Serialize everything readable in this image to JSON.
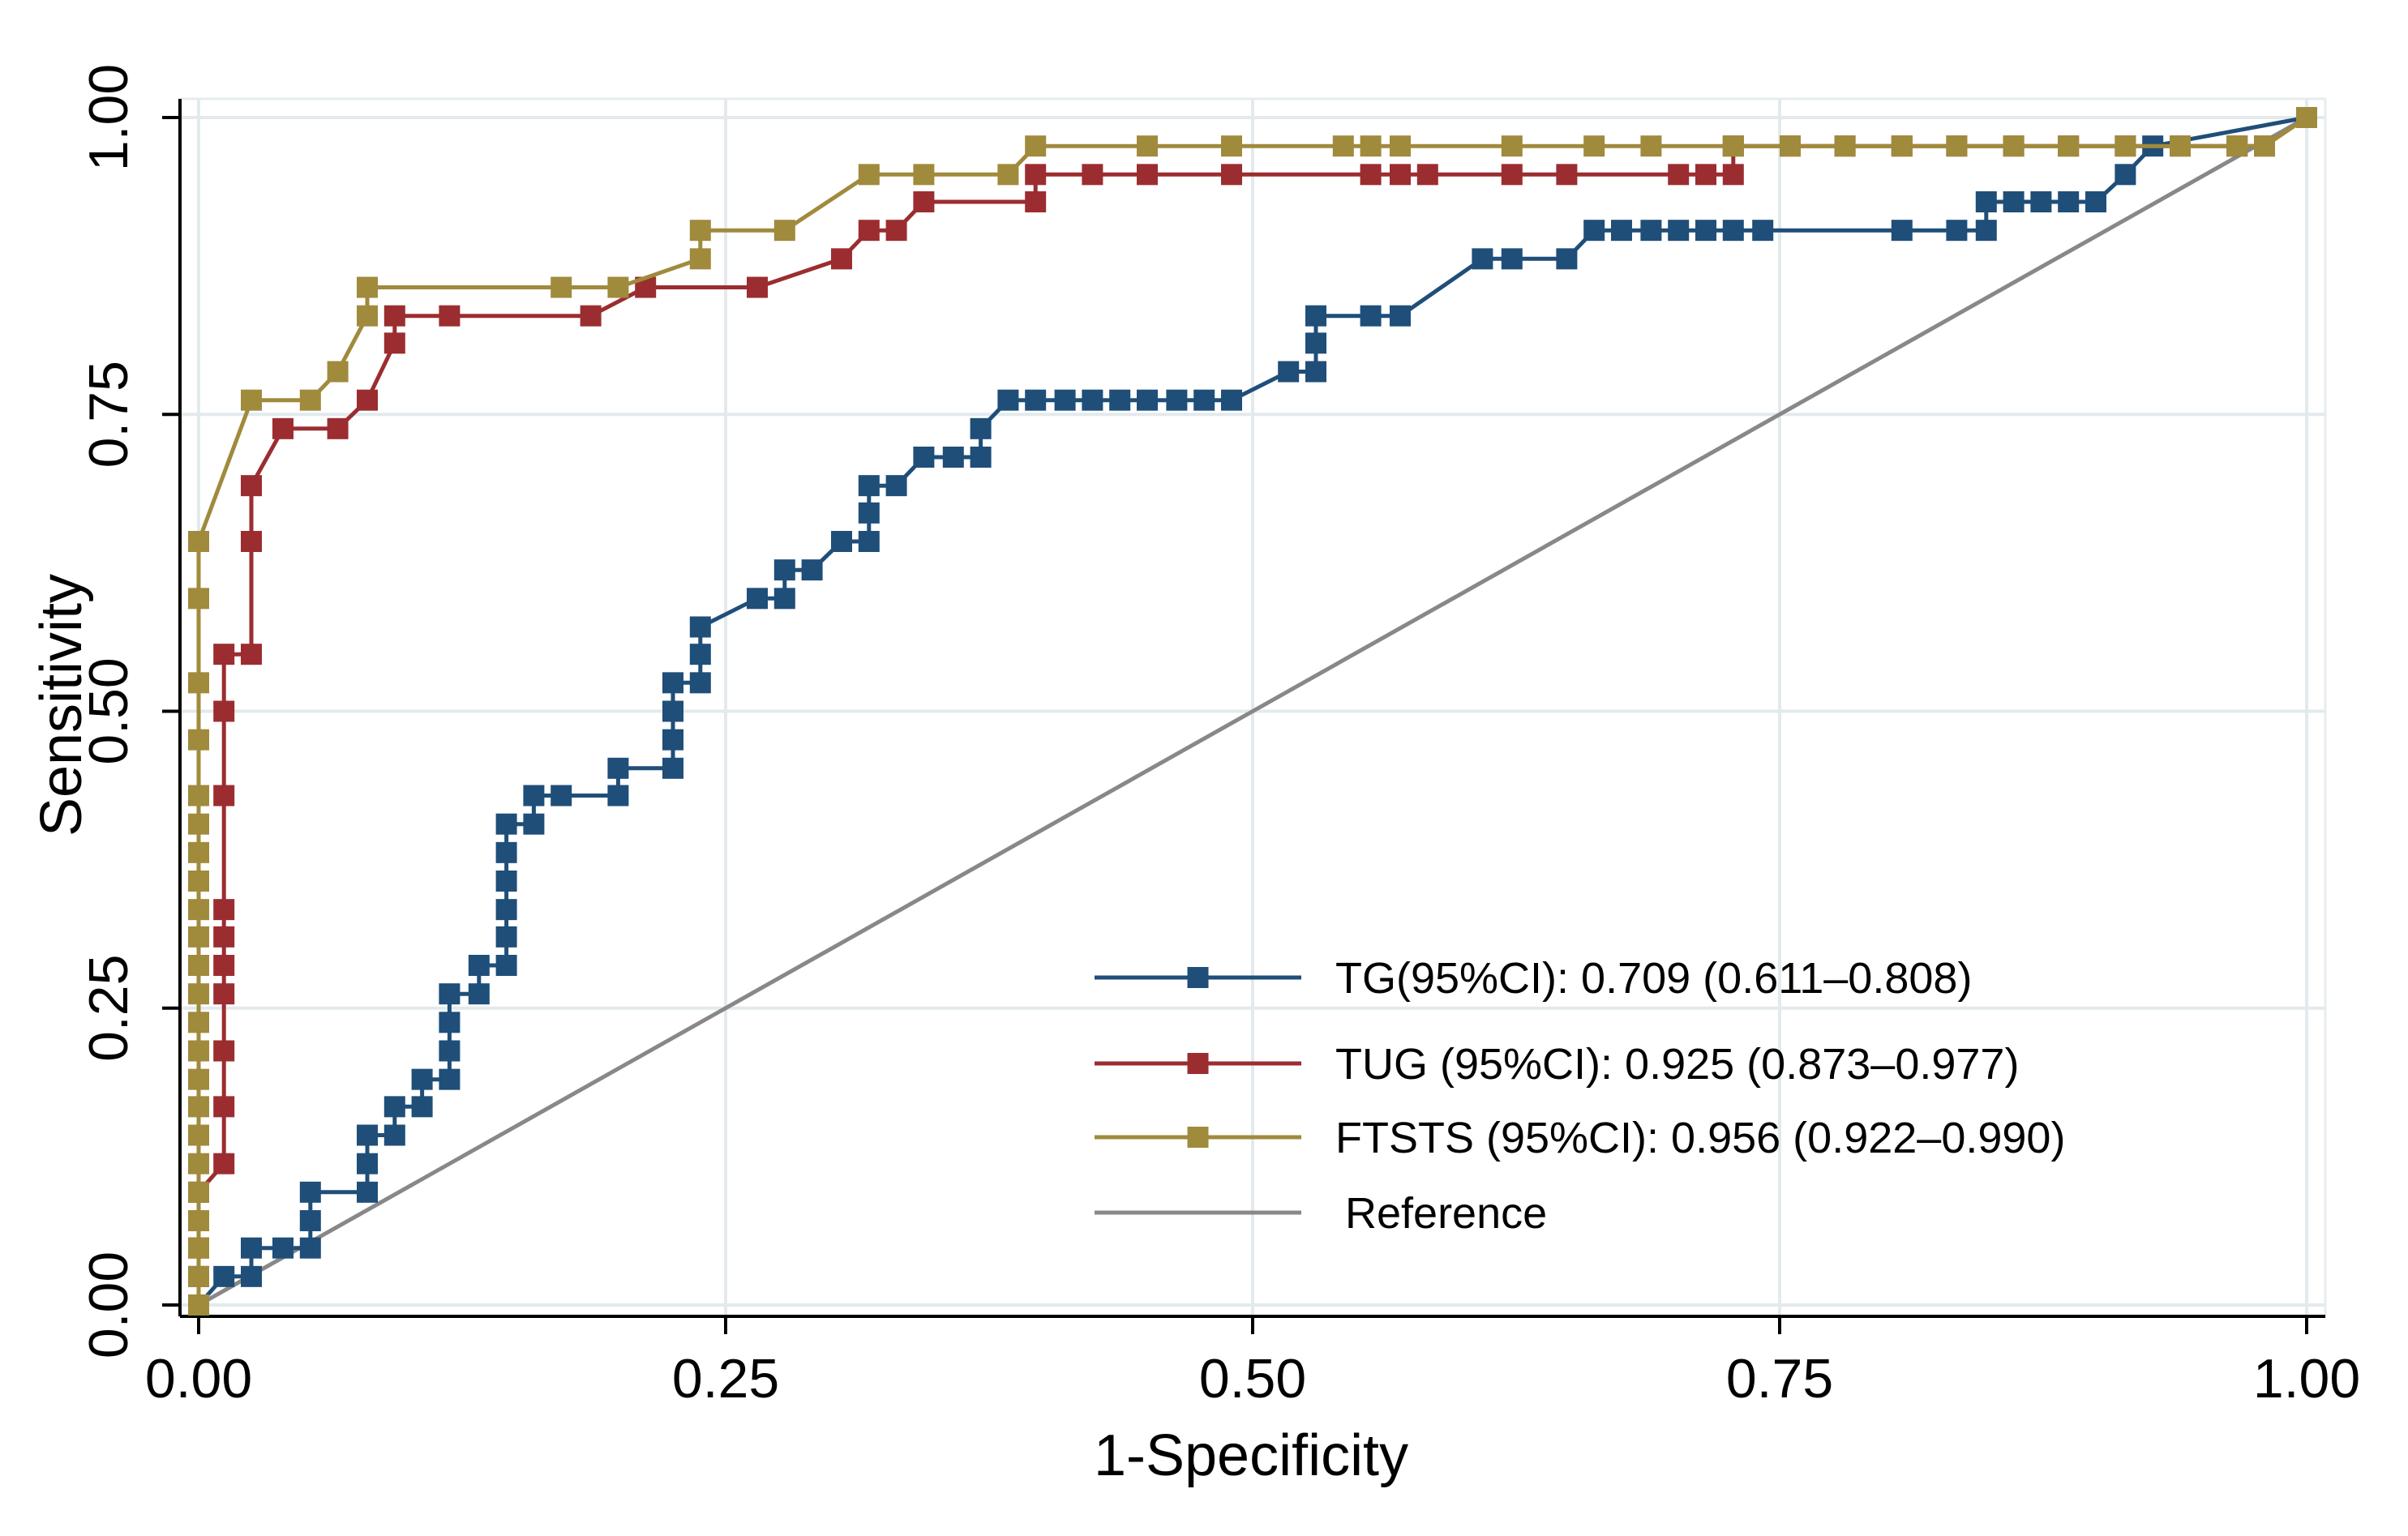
{
  "chart_data": {
    "type": "line",
    "title": "",
    "xlabel": "1-Specificity",
    "ylabel": "Sensitivity",
    "xlim": [
      0,
      1
    ],
    "ylim": [
      0,
      1
    ],
    "xticks": [
      0,
      0.25,
      0.5,
      0.75,
      1
    ],
    "yticks": [
      0,
      0.25,
      0.5,
      0.75,
      1
    ],
    "xtick_labels": [
      "0.00",
      "0.25",
      "0.50",
      "0.75",
      "1.00"
    ],
    "ytick_labels": [
      "0.00",
      "0.25",
      "0.50",
      "0.75",
      "1.00"
    ],
    "grid": true,
    "legend_position": "bottom-right",
    "series": [
      {
        "name": "TG(95%CI): 0.709 (0.611–0.808)",
        "color": "#1f4e79",
        "marker": "square",
        "points": [
          [
            0,
            0
          ],
          [
            0.012,
            0.024
          ],
          [
            0.025,
            0.024
          ],
          [
            0.025,
            0.048
          ],
          [
            0.04,
            0.048
          ],
          [
            0.053,
            0.048
          ],
          [
            0.053,
            0.071
          ],
          [
            0.053,
            0.095
          ],
          [
            0.08,
            0.095
          ],
          [
            0.08,
            0.119
          ],
          [
            0.08,
            0.143
          ],
          [
            0.093,
            0.143
          ],
          [
            0.093,
            0.167
          ],
          [
            0.106,
            0.167
          ],
          [
            0.106,
            0.19
          ],
          [
            0.119,
            0.19
          ],
          [
            0.119,
            0.214
          ],
          [
            0.119,
            0.238
          ],
          [
            0.119,
            0.262
          ],
          [
            0.133,
            0.262
          ],
          [
            0.133,
            0.286
          ],
          [
            0.146,
            0.286
          ],
          [
            0.146,
            0.31
          ],
          [
            0.146,
            0.333
          ],
          [
            0.146,
            0.357
          ],
          [
            0.146,
            0.381
          ],
          [
            0.146,
            0.405
          ],
          [
            0.159,
            0.405
          ],
          [
            0.159,
            0.429
          ],
          [
            0.172,
            0.429
          ],
          [
            0.199,
            0.429
          ],
          [
            0.199,
            0.452
          ],
          [
            0.225,
            0.452
          ],
          [
            0.225,
            0.476
          ],
          [
            0.225,
            0.5
          ],
          [
            0.225,
            0.524
          ],
          [
            0.238,
            0.524
          ],
          [
            0.238,
            0.548
          ],
          [
            0.238,
            0.571
          ],
          [
            0.265,
            0.595
          ],
          [
            0.278,
            0.595
          ],
          [
            0.278,
            0.619
          ],
          [
            0.291,
            0.619
          ],
          [
            0.305,
            0.643
          ],
          [
            0.318,
            0.643
          ],
          [
            0.318,
            0.667
          ],
          [
            0.318,
            0.69
          ],
          [
            0.331,
            0.69
          ],
          [
            0.344,
            0.714
          ],
          [
            0.358,
            0.714
          ],
          [
            0.371,
            0.714
          ],
          [
            0.371,
            0.738
          ],
          [
            0.384,
            0.762
          ],
          [
            0.397,
            0.762
          ],
          [
            0.411,
            0.762
          ],
          [
            0.424,
            0.762
          ],
          [
            0.437,
            0.762
          ],
          [
            0.45,
            0.762
          ],
          [
            0.464,
            0.762
          ],
          [
            0.477,
            0.762
          ],
          [
            0.49,
            0.762
          ],
          [
            0.517,
            0.786
          ],
          [
            0.53,
            0.786
          ],
          [
            0.53,
            0.81
          ],
          [
            0.53,
            0.833
          ],
          [
            0.556,
            0.833
          ],
          [
            0.57,
            0.833
          ],
          [
            0.609,
            0.881
          ],
          [
            0.623,
            0.881
          ],
          [
            0.649,
            0.881
          ],
          [
            0.662,
            0.905
          ],
          [
            0.675,
            0.905
          ],
          [
            0.689,
            0.905
          ],
          [
            0.702,
            0.905
          ],
          [
            0.715,
            0.905
          ],
          [
            0.728,
            0.905
          ],
          [
            0.742,
            0.905
          ],
          [
            0.808,
            0.905
          ],
          [
            0.834,
            0.905
          ],
          [
            0.848,
            0.905
          ],
          [
            0.848,
            0.929
          ],
          [
            0.861,
            0.929
          ],
          [
            0.874,
            0.929
          ],
          [
            0.887,
            0.929
          ],
          [
            0.9,
            0.929
          ],
          [
            0.914,
            0.952
          ],
          [
            0.927,
            0.976
          ],
          [
            1,
            1
          ]
        ]
      },
      {
        "name": "TUG (95%CI): 0.925 (0.873–0.977)",
        "color": "#9b2d30",
        "marker": "square",
        "points": [
          [
            0,
            0
          ],
          [
            0,
            0.024
          ],
          [
            0,
            0.048
          ],
          [
            0,
            0.071
          ],
          [
            0,
            0.095
          ],
          [
            0.012,
            0.119
          ],
          [
            0.012,
            0.167
          ],
          [
            0.012,
            0.214
          ],
          [
            0.012,
            0.262
          ],
          [
            0.012,
            0.286
          ],
          [
            0.012,
            0.31
          ],
          [
            0.012,
            0.333
          ],
          [
            0.012,
            0.429
          ],
          [
            0.012,
            0.5
          ],
          [
            0.012,
            0.548
          ],
          [
            0.025,
            0.548
          ],
          [
            0.025,
            0.643
          ],
          [
            0.025,
            0.69
          ],
          [
            0.04,
            0.738
          ],
          [
            0.066,
            0.738
          ],
          [
            0.08,
            0.762
          ],
          [
            0.093,
            0.81
          ],
          [
            0.093,
            0.833
          ],
          [
            0.119,
            0.833
          ],
          [
            0.186,
            0.833
          ],
          [
            0.212,
            0.857
          ],
          [
            0.265,
            0.857
          ],
          [
            0.305,
            0.881
          ],
          [
            0.318,
            0.905
          ],
          [
            0.331,
            0.905
          ],
          [
            0.344,
            0.929
          ],
          [
            0.397,
            0.929
          ],
          [
            0.397,
            0.952
          ],
          [
            0.424,
            0.952
          ],
          [
            0.45,
            0.952
          ],
          [
            0.49,
            0.952
          ],
          [
            0.556,
            0.952
          ],
          [
            0.57,
            0.952
          ],
          [
            0.583,
            0.952
          ],
          [
            0.623,
            0.952
          ],
          [
            0.649,
            0.952
          ],
          [
            0.702,
            0.952
          ],
          [
            0.715,
            0.952
          ],
          [
            0.728,
            0.952
          ],
          [
            0.728,
            0.976
          ],
          [
            0.755,
            0.976
          ],
          [
            0.781,
            0.976
          ],
          [
            0.808,
            0.976
          ],
          [
            0.834,
            0.976
          ],
          [
            0.861,
            0.976
          ],
          [
            0.887,
            0.976
          ],
          [
            0.914,
            0.976
          ],
          [
            0.94,
            0.976
          ],
          [
            0.967,
            0.976
          ],
          [
            0.98,
            0.976
          ],
          [
            1,
            1
          ]
        ]
      },
      {
        "name": "FTSTS (95%CI): 0.956 (0.922–0.990)",
        "color": "#a08a3c",
        "marker": "square",
        "points": [
          [
            0,
            0
          ],
          [
            0,
            0.024
          ],
          [
            0,
            0.048
          ],
          [
            0,
            0.071
          ],
          [
            0,
            0.095
          ],
          [
            0,
            0.119
          ],
          [
            0,
            0.143
          ],
          [
            0,
            0.167
          ],
          [
            0,
            0.19
          ],
          [
            0,
            0.214
          ],
          [
            0,
            0.238
          ],
          [
            0,
            0.262
          ],
          [
            0,
            0.286
          ],
          [
            0,
            0.31
          ],
          [
            0,
            0.333
          ],
          [
            0,
            0.357
          ],
          [
            0,
            0.381
          ],
          [
            0,
            0.405
          ],
          [
            0,
            0.429
          ],
          [
            0,
            0.476
          ],
          [
            0,
            0.524
          ],
          [
            0,
            0.595
          ],
          [
            0,
            0.643
          ],
          [
            0.025,
            0.762
          ],
          [
            0.053,
            0.762
          ],
          [
            0.066,
            0.786
          ],
          [
            0.08,
            0.833
          ],
          [
            0.08,
            0.857
          ],
          [
            0.172,
            0.857
          ],
          [
            0.199,
            0.857
          ],
          [
            0.238,
            0.881
          ],
          [
            0.238,
            0.905
          ],
          [
            0.278,
            0.905
          ],
          [
            0.318,
            0.952
          ],
          [
            0.344,
            0.952
          ],
          [
            0.384,
            0.952
          ],
          [
            0.397,
            0.976
          ],
          [
            0.45,
            0.976
          ],
          [
            0.49,
            0.976
          ],
          [
            0.543,
            0.976
          ],
          [
            0.556,
            0.976
          ],
          [
            0.57,
            0.976
          ],
          [
            0.623,
            0.976
          ],
          [
            0.662,
            0.976
          ],
          [
            0.689,
            0.976
          ],
          [
            0.728,
            0.976
          ],
          [
            0.755,
            0.976
          ],
          [
            0.781,
            0.976
          ],
          [
            0.808,
            0.976
          ],
          [
            0.834,
            0.976
          ],
          [
            0.861,
            0.976
          ],
          [
            0.887,
            0.976
          ],
          [
            0.914,
            0.976
          ],
          [
            0.94,
            0.976
          ],
          [
            0.967,
            0.976
          ],
          [
            0.98,
            0.976
          ],
          [
            1,
            1
          ]
        ]
      },
      {
        "name": "Reference",
        "color": "#888888",
        "marker": "none",
        "points": [
          [
            0,
            0
          ],
          [
            1,
            1
          ]
        ]
      }
    ]
  }
}
